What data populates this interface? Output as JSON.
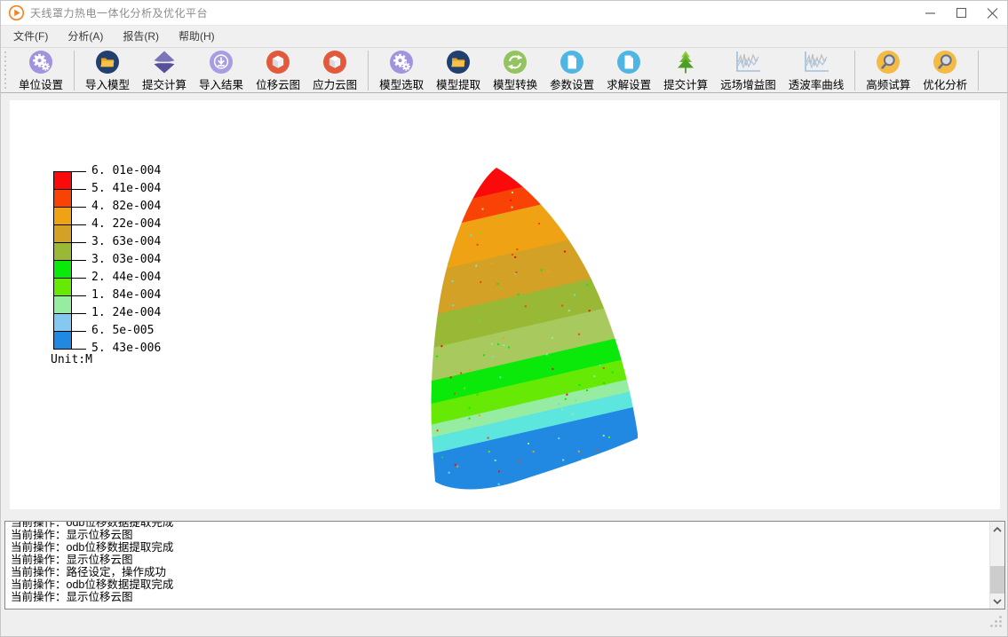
{
  "window": {
    "title": "天线罩力热电一体化分析及优化平台"
  },
  "menu": {
    "items": [
      "文件(F)",
      "分析(A)",
      "报告(R)",
      "帮助(H)"
    ]
  },
  "toolbar": {
    "groups": [
      {
        "items": [
          {
            "label": "单位设置",
            "icon": "gear"
          }
        ]
      },
      {
        "items": [
          {
            "label": "导入模型",
            "icon": "folder"
          },
          {
            "label": "提交计算",
            "icon": "spinner"
          },
          {
            "label": "导入结果",
            "icon": "download"
          },
          {
            "label": "位移云图",
            "icon": "cube"
          },
          {
            "label": "应力云图",
            "icon": "cube"
          }
        ]
      },
      {
        "items": [
          {
            "label": "模型选取",
            "icon": "gear"
          },
          {
            "label": "模型提取",
            "icon": "folder"
          },
          {
            "label": "模型转换",
            "icon": "refresh"
          },
          {
            "label": "参数设置",
            "icon": "document"
          },
          {
            "label": "求解设置",
            "icon": "document"
          },
          {
            "label": "提交计算",
            "icon": "tree"
          },
          {
            "label": "远场增益图",
            "icon": "waveform"
          },
          {
            "label": "透波率曲线",
            "icon": "waveform"
          }
        ]
      },
      {
        "items": [
          {
            "label": "高频试算",
            "icon": "magnifier"
          },
          {
            "label": "优化分析",
            "icon": "magnifier"
          }
        ]
      }
    ]
  },
  "legend": {
    "ticks": [
      "6. 01e-004",
      "5. 41e-004",
      "4. 82e-004",
      "4. 22e-004",
      "3. 63e-004",
      "3. 03e-004",
      "2. 44e-004",
      "1. 84e-004",
      "1. 24e-004",
      "6. 5e-005",
      "5. 43e-006"
    ],
    "colors": [
      "#FA0A0A",
      "#F94306",
      "#EFA214",
      "#D3A125",
      "#98B836",
      "#0AE90A",
      "#66E905",
      "#96ECA0",
      "#85C9F3",
      "#2189E2"
    ],
    "unit_label": "Unit:M"
  },
  "model": {
    "bands": [
      {
        "color": "#FA0A0A",
        "to": 100
      },
      {
        "color": "#F94306",
        "to": 124
      },
      {
        "color": "#EFA214",
        "to": 170
      },
      {
        "color": "#D3A125",
        "to": 218
      },
      {
        "color": "#98B836",
        "to": 254
      },
      {
        "color": "#A8C95E",
        "to": 290
      },
      {
        "color": "#0AE90A",
        "to": 315
      },
      {
        "color": "#66E905",
        "to": 338
      },
      {
        "color": "#96ECA0",
        "to": 352
      },
      {
        "color": "#5CE6DE",
        "to": 370
      },
      {
        "color": "#2189E2",
        "to": 470
      }
    ]
  },
  "log": {
    "lines": [
      "当前操作：odb位移数据提取完成",
      "当前操作：显示位移云图",
      "当前操作：odb位移数据提取完成",
      "当前操作：显示位移云图",
      "当前操作：路径设定，操作成功",
      "当前操作：odb位移数据提取完成",
      "当前操作：显示位移云图"
    ]
  }
}
